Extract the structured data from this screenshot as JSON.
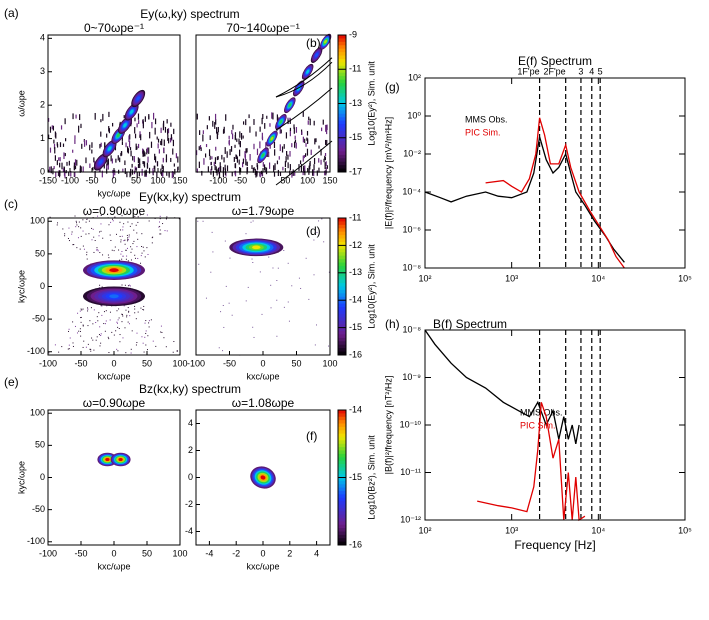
{
  "chart_data": [
    {
      "type": "heatmap",
      "label": "(a)",
      "title": "Ey(ω,ky) spectrum",
      "subtitle": "0~70ωpe⁻¹",
      "xlabel": "kyc/ωpe",
      "ylabel": "ω/ωpe",
      "xlim": [
        -150,
        150
      ],
      "ylim": [
        0,
        4.1
      ],
      "xticks": [
        -150,
        -100,
        -50,
        0,
        50,
        100,
        150
      ],
      "yticks": [
        0,
        1,
        2,
        3,
        4
      ],
      "points": {
        "x": [
          -30,
          -10,
          10,
          25,
          40,
          55
        ],
        "y": [
          0.3,
          0.7,
          1.1,
          1.4,
          1.8,
          2.2
        ],
        "z": [
          -14,
          -13,
          -12,
          -13,
          -13,
          -14
        ]
      }
    },
    {
      "type": "heatmap",
      "label": "(b)",
      "subtitle": "70~140ωpe⁻¹",
      "xlim": [
        -150,
        150
      ],
      "ylim": [
        0,
        4.1
      ],
      "xticks": [
        -100,
        -50,
        0,
        50,
        100,
        150
      ],
      "yticks": [],
      "points": {
        "x": [
          0,
          20,
          40,
          60,
          80,
          100,
          120,
          140
        ],
        "y": [
          0.5,
          1.0,
          1.5,
          2.0,
          2.5,
          3.0,
          3.5,
          3.9
        ],
        "z": [
          -12,
          -11,
          -12,
          -12,
          -13,
          -13,
          -14,
          -11
        ]
      },
      "colorbar": {
        "label": "Log10(Ey²), Sim. unit",
        "lim": [
          -17,
          -9
        ],
        "ticks": [
          -9,
          -11,
          -13,
          -15,
          -17
        ]
      }
    },
    {
      "type": "heatmap",
      "label": "(c)",
      "title": "Ey(kx,ky) spectrum",
      "subtitle": "ω=0.90ωpe",
      "xlabel": "kxc/ωpe",
      "ylabel": "kyc/ωpe",
      "xlim": [
        -100,
        100
      ],
      "ylim": [
        -105,
        105
      ],
      "xticks": [
        -100,
        -50,
        0,
        50,
        100
      ],
      "yticks": [
        -100,
        -50,
        0,
        50,
        100
      ],
      "points": {
        "x": [
          0,
          0
        ],
        "y": [
          25,
          -15
        ],
        "z": [
          -11,
          -14
        ]
      }
    },
    {
      "type": "heatmap",
      "label": "(d)",
      "subtitle": "ω=1.79ωpe",
      "xlabel": "kxc/ωpe",
      "xlim": [
        -100,
        100
      ],
      "ylim": [
        -105,
        105
      ],
      "xticks": [
        -100,
        -50,
        0,
        50,
        100
      ],
      "yticks": [],
      "points": {
        "x": [
          -10
        ],
        "y": [
          60
        ],
        "z": [
          -12
        ]
      },
      "colorbar": {
        "label": "Log10(Ey²), Sim. unit",
        "lim": [
          -16,
          -11
        ],
        "ticks": [
          -11,
          -12,
          -13,
          -14,
          -15,
          -16
        ]
      }
    },
    {
      "type": "heatmap",
      "label": "(e)",
      "title": "Bz(kx,ky) spectrum",
      "subtitle": "ω=0.90ωpe",
      "xlabel": "kxc/ωpe",
      "ylabel": "kyc/ωpe",
      "xlim": [
        -100,
        100
      ],
      "ylim": [
        -105,
        105
      ],
      "xticks": [
        -100,
        -50,
        0,
        50,
        100
      ],
      "yticks": [
        -100,
        -50,
        0,
        50,
        100
      ],
      "points": {
        "x": [
          -10,
          10
        ],
        "y": [
          28,
          28
        ],
        "z": [
          -14,
          -14
        ]
      }
    },
    {
      "type": "heatmap",
      "label": "(f)",
      "subtitle": "ω=1.08ωpe",
      "xlabel": "kxc/ωpe",
      "xlim": [
        -5,
        5
      ],
      "ylim": [
        -5,
        5
      ],
      "xticks": [
        -4,
        -2,
        0,
        2,
        4
      ],
      "yticks": [
        -4,
        -2,
        0,
        2,
        4
      ],
      "points": {
        "x": [
          0
        ],
        "y": [
          0
        ],
        "z": [
          -14
        ]
      },
      "colorbar": {
        "label": "Log10(Bz²), Sim. unit",
        "lim": [
          -16,
          -14
        ],
        "ticks": [
          -14,
          -15,
          -16
        ]
      }
    },
    {
      "type": "line",
      "label": "(g)",
      "title": "E(f) Spectrum",
      "xlabel": "",
      "ylabel": "|E(f)|²/frequency [mV²/m²Hz]",
      "log": true,
      "legend": "upper left",
      "xlim": [
        100,
        100000
      ],
      "ylim": [
        1e-08,
        100
      ],
      "xticks": [
        {
          "value": 100,
          "label": "10²"
        },
        {
          "value": 1000,
          "label": "10³"
        },
        {
          "value": 10000,
          "label": "10⁴"
        },
        {
          "value": 100000,
          "label": "10⁵"
        }
      ],
      "yticks": [
        {
          "value": 1e-08,
          "label": "10⁻⁸"
        },
        {
          "value": 1e-06,
          "label": "10⁻⁶"
        },
        {
          "value": 0.0001,
          "label": "10⁻⁴"
        },
        {
          "value": 0.01,
          "label": "10⁻²"
        },
        {
          "value": 1,
          "label": "10⁰"
        },
        {
          "value": 100,
          "label": "10²"
        }
      ],
      "vlines": [
        2100,
        4200,
        6300,
        8400,
        10500
      ],
      "vline_labels": [
        "1F'pe",
        "2F'pe",
        "3",
        "4",
        "5"
      ],
      "series": [
        {
          "name": "MMS Obs.",
          "color": "#000000",
          "x": [
            100,
            150,
            200,
            300,
            500,
            700,
            1000,
            1500,
            1800,
            2100,
            2500,
            3000,
            3500,
            4200,
            4800,
            5500,
            7000,
            9000,
            12000,
            15000,
            20000
          ],
          "values": [
            0.0001,
            5e-05,
            3e-05,
            6e-05,
            0.0001,
            6e-05,
            5e-05,
            0.0001,
            0.001,
            0.08,
            0.005,
            0.001,
            0.002,
            0.01,
            0.001,
            0.0001,
            2e-05,
            3e-06,
            5e-07,
            1e-07,
            2e-08
          ]
        },
        {
          "name": "PIC Sim.",
          "color": "#e00000",
          "x": [
            500,
            800,
            1000,
            1300,
            1600,
            1900,
            2100,
            2400,
            2800,
            3500,
            4200,
            4800,
            6000,
            8000,
            10000,
            13000,
            16000,
            20000
          ],
          "values": [
            0.0003,
            0.0004,
            0.0002,
            0.0001,
            0.0005,
            0.01,
            0.8,
            0.1,
            0.003,
            0.003,
            0.03,
            0.002,
            0.0001,
            1e-05,
            2e-06,
            3e-07,
            4e-08,
            1e-08
          ]
        }
      ]
    },
    {
      "type": "line",
      "label": "(h)",
      "title": "B(f) Spectrum",
      "xlabel": "Frequency [Hz]",
      "ylabel": "|B(f)|²/frequency [nT²/Hz]",
      "log": true,
      "legend": "center",
      "xlim": [
        100,
        100000
      ],
      "ylim": [
        1e-12,
        1e-08
      ],
      "xticks": [
        {
          "value": 100,
          "label": "10²"
        },
        {
          "value": 1000,
          "label": "10³"
        },
        {
          "value": 10000,
          "label": "10⁴"
        },
        {
          "value": 100000,
          "label": "10⁵"
        }
      ],
      "yticks": [
        {
          "value": 1e-12,
          "label": "10⁻¹²"
        },
        {
          "value": 1e-11,
          "label": "10⁻¹¹"
        },
        {
          "value": 1e-10,
          "label": "10⁻¹⁰"
        },
        {
          "value": 1e-09,
          "label": "10⁻⁹"
        },
        {
          "value": 1e-08,
          "label": "10⁻⁸"
        }
      ],
      "vlines": [
        2100,
        4200,
        6300,
        8400,
        10500
      ],
      "series": [
        {
          "name": "MMS Obs.",
          "color": "#000000",
          "x": [
            100,
            130,
            200,
            300,
            500,
            800,
            1200,
            1600,
            2000,
            2500,
            3000,
            3500,
            4000,
            4500,
            5000,
            5500,
            6000
          ],
          "values": [
            1e-08,
            5e-09,
            2e-09,
            1e-09,
            6e-10,
            3e-10,
            2e-10,
            1.5e-10,
            3e-10,
            1e-10,
            2e-10,
            5e-11,
            1.5e-10,
            5e-11,
            1e-10,
            4e-11,
            1e-10
          ]
        },
        {
          "name": "PIC Sim.",
          "color": "#e00000",
          "x": [
            400,
            700,
            1000,
            1500,
            1800,
            2000,
            2200,
            2500,
            3000,
            3500,
            4000,
            4500,
            5000,
            5500,
            6000,
            7000
          ],
          "values": [
            2.5e-12,
            2e-12,
            1.8e-12,
            1.5e-12,
            5e-12,
            3e-11,
            3e-10,
            1.5e-10,
            2e-11,
            5e-11,
            1e-12,
            1e-11,
            1e-12,
            8e-12,
            1e-12,
            1.2e-12
          ]
        }
      ]
    }
  ]
}
